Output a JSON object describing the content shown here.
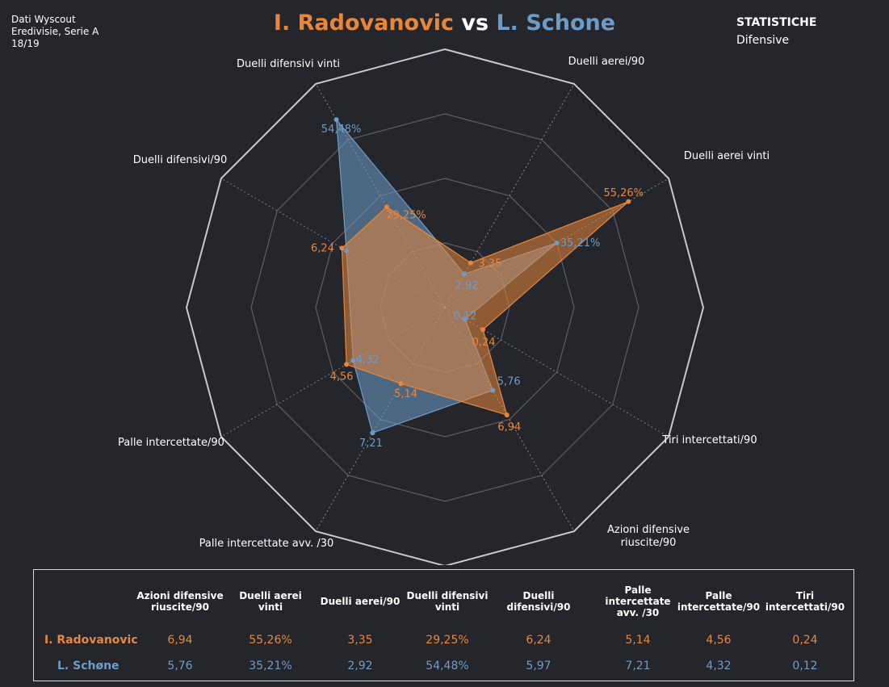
{
  "source": {
    "line1": "Dati Wyscout",
    "line2": "Eredivisie, Serie A",
    "line3": "18/19"
  },
  "title": {
    "player1": "I. Radovanovic",
    "vs": "vs",
    "player2": "L. Schone"
  },
  "stat_box": {
    "heading": "STATISTICHE",
    "subheading": "Difensive"
  },
  "colors": {
    "player1": "#e8873c",
    "player2": "#6e9cc9",
    "background": "#25262b"
  },
  "chart_data": {
    "type": "radar",
    "axes": [
      "Duelli difensivi vinti",
      "Duelli aerei/90",
      "Duelli aerei vinti",
      "Tiri intercettati/90",
      "Azioni difensive\nriuscite/90",
      "Palle intercettate avv. /30",
      "Palle intercettate/90",
      "Duelli difensivi/90"
    ],
    "rings": 4,
    "grid": true,
    "series": [
      {
        "name": "I. Radovanovic",
        "color": "#e8873c",
        "labels": [
          "29,25%",
          "3,35",
          "55,26%",
          "0,24",
          "6,94",
          "5,14",
          "4,56",
          "6,24"
        ],
        "normalized": [
          0.45,
          0.2,
          0.82,
          0.17,
          0.48,
          0.34,
          0.44,
          0.46
        ]
      },
      {
        "name": "L. Schøne",
        "color": "#6e9cc9",
        "labels": [
          "54,48%",
          "2,92",
          "35,21%",
          "0,12",
          "5,76",
          "7,21",
          "4,32",
          "5,97"
        ],
        "normalized": [
          0.84,
          0.15,
          0.5,
          0.09,
          0.37,
          0.56,
          0.41,
          0.44
        ]
      }
    ],
    "hidden_labels": [
      false,
      false,
      false,
      false,
      false,
      false,
      false,
      true
    ]
  },
  "table": {
    "headers": [
      "Azioni difensive riuscite/90",
      "Duelli aerei vinti",
      "Duelli aerei/90",
      "Duelli difensivi vinti",
      "Duelli difensivi/90",
      "Palle intercettate avv. /30",
      "Palle intercettate/90",
      "Tiri intercettati/90"
    ],
    "rows": [
      {
        "label": "I. Radovanovic",
        "values": [
          "6,94",
          "55,26%",
          "3,35",
          "29,25%",
          "6,24",
          "5,14",
          "4,56",
          "0,24"
        ]
      },
      {
        "label": "L. Schøne",
        "values": [
          "5,76",
          "35,21%",
          "2,92",
          "54,48%",
          "5,97",
          "7,21",
          "4,32",
          "0,12"
        ]
      }
    ]
  }
}
